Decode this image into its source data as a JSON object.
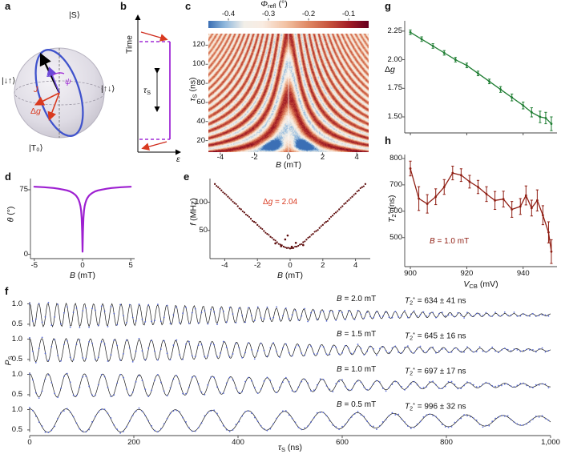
{
  "panel_labels": {
    "a": "a",
    "b": "b",
    "c": "c",
    "d": "d",
    "e": "e",
    "f": "f",
    "g": "g",
    "h": "h"
  },
  "bloch": {
    "state_top": "|S⟩",
    "state_left": "|↓↑⟩",
    "state_right": "|↑↓⟩",
    "state_bottom": "|T₀⟩",
    "label_J": "<i>J</i>",
    "label_B": "<i>B</i>",
    "label_dg": "Δ<i>g</i>",
    "label_psi": "<i>ψ</i>",
    "colors": {
      "circle": "#4053cc",
      "red": "#d93a20",
      "purple": "#6b46d8",
      "vector": "#000000"
    }
  },
  "pulse": {
    "time_label": "Time",
    "eps_label": "<i>ε</i>",
    "tau_label": "<i>τ</i><sub>S</sub>",
    "colors": {
      "pulse": "#a02bd6",
      "arrow": "#cf2a1b"
    }
  },
  "labels": {
    "c_title": "<i>Φ</i><sub>refl</sub> (°)",
    "c_xlabel": "<i>B</i> (mT)",
    "c_ylabel": "<i>τ</i><sub>S</sub> (ns)",
    "d_xlabel": "<i>B</i> (mT)",
    "d_ylabel": "<i>θ</i> (°)",
    "e_xlabel": "<i>B</i> (mT)",
    "e_ylabel": "<i>f</i> (MHz)",
    "e_annotation": "Δ<i>g</i> = 2.04",
    "g_ylabel": "Δ<i>g</i>",
    "h_xlabel": "<i>V</i><sub>CB</sub> (mV)",
    "h_ylabel": "<i>T</i><sub>2</sub><sup>*</sup> (ns)",
    "h_annotation": "<i>B</i> = 1.0 mT",
    "f_xlabel": "<i>τ</i><sub>S</sub> (ns)",
    "f_ylabel": "<i>P</i><sub>S</sub>"
  },
  "chart_data": [
    {
      "id": "c",
      "type": "heatmap",
      "xlabel": "B (mT)",
      "ylabel": "τS (ns)",
      "x_range": [
        -4.7,
        4.7
      ],
      "y_range": [
        8,
        132
      ],
      "xticks": [
        -4,
        -2,
        0,
        2,
        4
      ],
      "xtick_labels": [
        "-4",
        "-2",
        "0",
        "2",
        "4"
      ],
      "yticks": [
        20,
        40,
        60,
        80,
        100,
        120
      ],
      "ytick_labels": [
        "20",
        "40",
        "60",
        "80",
        "100",
        "120"
      ],
      "colorbar": {
        "title": "Φrefl (°)",
        "range": [
          -0.45,
          -0.05
        ],
        "ticks": [
          -0.4,
          -0.3,
          -0.2,
          -0.1
        ],
        "tick_labels": [
          "-0.4",
          "-0.3",
          "-0.2",
          "-0.1"
        ],
        "colormap": "RdBu reversed"
      },
      "model": {
        "description": "singlet-triplet interference funnel: phi = -0.25 + 0.145*cos(2*pi*f(B)*tau/1000)*exp(-damping), f(B)=sqrt((28.5*B)^2+15^2) MHz",
        "freq_slope_mhz_per_mt": 28.5,
        "freq_min_mhz": 15
      }
    },
    {
      "id": "d",
      "type": "line",
      "color": "#9d1fd1",
      "xlim": [
        -5.4,
        5.4
      ],
      "ylim": [
        -5,
        88
      ],
      "xticks": [
        -5,
        0,
        5
      ],
      "xtick_labels": [
        "-5",
        "0",
        "5"
      ],
      "yticks": [
        0,
        75
      ],
      "ytick_labels": [
        "0",
        "75"
      ],
      "x": [
        -5,
        -4,
        -3,
        -2.5,
        -2,
        -1.6,
        -1.3,
        -1,
        -0.8,
        -0.65,
        -0.5,
        -0.4,
        -0.3,
        -0.22,
        -0.15,
        -0.09,
        -0.04,
        0,
        0.04,
        0.09,
        0.15,
        0.22,
        0.3,
        0.4,
        0.5,
        0.65,
        0.8,
        1,
        1.3,
        1.6,
        2,
        2.5,
        3,
        4,
        5
      ],
      "y": [
        78.5,
        78,
        77,
        76.2,
        75.2,
        74.2,
        73,
        71.2,
        69.5,
        67.8,
        65.3,
        63.1,
        59.7,
        55.9,
        50.7,
        42.1,
        26,
        3,
        26,
        42.1,
        50.7,
        55.9,
        59.7,
        63.1,
        65.3,
        67.8,
        69.5,
        71.2,
        73,
        74.2,
        75.2,
        76.2,
        77,
        78,
        78.5
      ]
    },
    {
      "id": "e",
      "type": "scatter",
      "color": "#5c0a0a",
      "xlim": [
        -4.9,
        4.9
      ],
      "ylim": [
        0,
        142
      ],
      "xticks": [
        -4,
        -2,
        0,
        2,
        4
      ],
      "xtick_labels": [
        "-4",
        "-2",
        "0",
        "2",
        "4"
      ],
      "yticks": [
        50,
        100
      ],
      "ytick_labels": [
        "50",
        "100"
      ],
      "annotation": {
        "text": "Δg = 2.04",
        "color": "#d93a20"
      },
      "x": [
        -4.6,
        -4.4,
        -4.2,
        -4.0,
        -3.8,
        -3.6,
        -3.4,
        -3.2,
        -3.0,
        -2.8,
        -2.6,
        -2.4,
        -2.2,
        -2.0,
        -1.8,
        -1.6,
        -1.4,
        -1.2,
        -1.0,
        -0.8,
        -0.6,
        -0.4,
        -0.2,
        0,
        0.2,
        0.4,
        0.6,
        0.8,
        1.0,
        1.2,
        1.4,
        1.6,
        1.8,
        2.0,
        2.2,
        2.4,
        2.6,
        2.8,
        3.0,
        3.2,
        3.4,
        3.6,
        3.8,
        4.0,
        4.2,
        4.4,
        4.6
      ],
      "y": [
        132.3,
        126.7,
        121.0,
        115.4,
        109.8,
        104.2,
        98.6,
        93.0,
        87.4,
        81.8,
        76.3,
        70.7,
        65.2,
        59.8,
        54.4,
        49.0,
        43.8,
        38.7,
        33.7,
        29.1,
        24.8,
        21.3,
        18.9,
        18.0,
        18.9,
        21.3,
        24.8,
        29.1,
        33.7,
        38.7,
        43.8,
        49.0,
        54.4,
        59.8,
        65.2,
        70.7,
        76.3,
        81.8,
        87.4,
        93.0,
        98.6,
        104.2,
        109.8,
        115.4,
        121.0,
        126.7,
        132.3
      ],
      "outliers_x": [
        -0.9,
        -0.55,
        -0.3,
        0.1,
        0.35,
        0.8,
        -0.15
      ],
      "outliers_y": [
        27,
        22,
        34,
        21,
        28,
        24,
        41
      ]
    },
    {
      "id": "g",
      "type": "errorline",
      "color": "#1e7d32",
      "xlim": [
        898,
        952
      ],
      "ylim": [
        1.36,
        2.34
      ],
      "xticks": [
        900,
        920,
        940
      ],
      "yticks": [
        1.5,
        1.75,
        2.0,
        2.25
      ],
      "ytick_labels": [
        "1.50",
        "1.75",
        "2.00",
        "2.25"
      ],
      "x": [
        900,
        904,
        908,
        912,
        916,
        920,
        924,
        928,
        932,
        936,
        940,
        943,
        946,
        948,
        950
      ],
      "y": [
        2.24,
        2.18,
        2.12,
        2.06,
        2.0,
        1.95,
        1.88,
        1.81,
        1.74,
        1.67,
        1.6,
        1.54,
        1.5,
        1.49,
        1.44
      ],
      "yerr": [
        0.02,
        0.02,
        0.02,
        0.02,
        0.02,
        0.02,
        0.02,
        0.02,
        0.025,
        0.03,
        0.03,
        0.04,
        0.05,
        0.05,
        0.06
      ]
    },
    {
      "id": "h",
      "type": "errorline",
      "color": "#8f1d12",
      "xlim": [
        898,
        952
      ],
      "ylim": [
        390,
        815
      ],
      "xticks": [
        900,
        920,
        940
      ],
      "xtick_labels": [
        "900",
        "920",
        "940"
      ],
      "yticks": [
        500,
        600,
        700,
        800
      ],
      "ytick_labels": [
        "500",
        "600",
        "700",
        "800"
      ],
      "annotation": {
        "text": "B = 1.0 mT"
      },
      "x": [
        900,
        903,
        906,
        909,
        912,
        915,
        918,
        921,
        924,
        927,
        930,
        933,
        936,
        939,
        941,
        943,
        945,
        947,
        949,
        950
      ],
      "y": [
        762,
        648,
        628,
        655,
        692,
        745,
        737,
        712,
        692,
        665,
        641,
        646,
        607,
        618,
        660,
        612,
        641,
        585,
        520,
        447
      ],
      "yerr": [
        28,
        45,
        35,
        30,
        28,
        26,
        24,
        24,
        25,
        28,
        34,
        30,
        30,
        30,
        36,
        30,
        40,
        36,
        40,
        45
      ]
    },
    {
      "id": "f",
      "type": "oscillations",
      "xlim": [
        0,
        1000
      ],
      "xticks": [
        0,
        200,
        400,
        600,
        800,
        1000
      ],
      "xtick_labels": [
        "0",
        "200",
        "400",
        "600",
        "800",
        "1,000"
      ],
      "yticks": [
        1.0,
        0.5
      ],
      "ytick_labels": [
        "1.0",
        "0.5"
      ],
      "baseline": 0.73,
      "amplitude": 0.29,
      "dot_color": "#4d5fd3",
      "line_color": "#1a1a1a",
      "traces": [
        {
          "b_mt": 2.0,
          "freq_mhz": 57.0,
          "t2_ns": 634,
          "b_html": "<i>B</i> = 2.0 mT",
          "t2_html": "<i>T</i><sub>2</sub><sup>*</sup> = 634 ± 41 ns"
        },
        {
          "b_mt": 1.5,
          "freq_mhz": 42.8,
          "t2_ns": 645,
          "b_html": "<i>B</i> = 1.5 mT",
          "t2_html": "<i>T</i><sub>2</sub><sup>*</sup> = 645 ± 16 ns"
        },
        {
          "b_mt": 1.0,
          "freq_mhz": 28.5,
          "t2_ns": 697,
          "b_html": "<i>B</i> = 1.0 mT",
          "t2_html": "<i>T</i><sub>2</sub><sup>*</sup> = 697 ± 17 ns"
        },
        {
          "b_mt": 0.5,
          "freq_mhz": 14.3,
          "t2_ns": 996,
          "b_html": "<i>B</i> = 0.5 mT",
          "t2_html": "<i>T</i><sub>2</sub><sup>*</sup> = 996 ± 32 ns"
        }
      ]
    }
  ]
}
